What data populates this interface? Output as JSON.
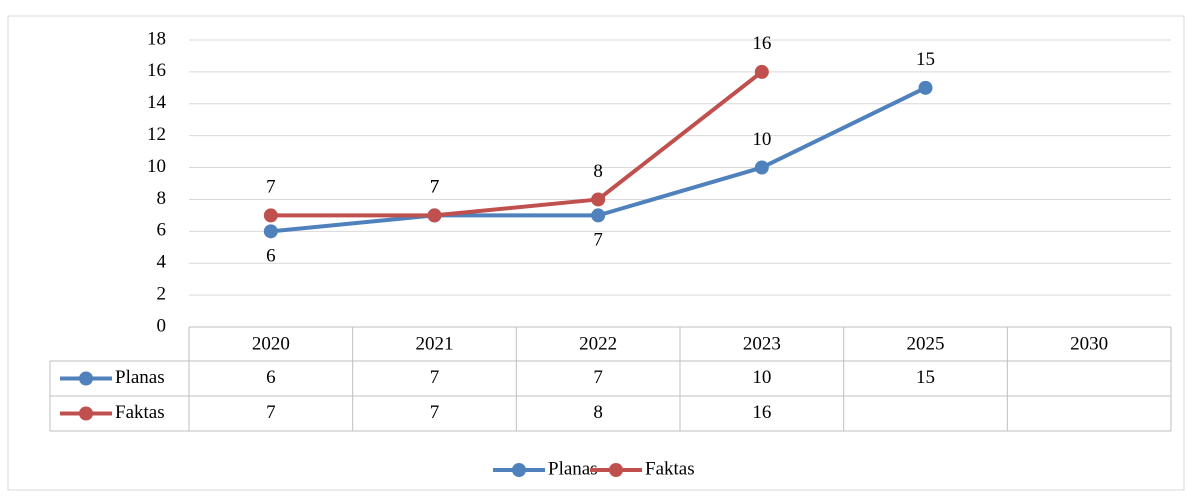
{
  "chart_data": {
    "type": "line",
    "categories": [
      "2020",
      "2021",
      "2022",
      "2023",
      "2025",
      "2030"
    ],
    "series": [
      {
        "name": "Planas",
        "color": "#4f81bd",
        "values": [
          6,
          7,
          7,
          10,
          15,
          null
        ]
      },
      {
        "name": "Faktas",
        "color": "#c0504d",
        "values": [
          7,
          7,
          8,
          16,
          null,
          null
        ]
      }
    ],
    "ylim": [
      0,
      18
    ],
    "yticks": [
      0,
      2,
      4,
      6,
      8,
      10,
      12,
      14,
      16,
      18
    ],
    "grid": true,
    "data_table": true,
    "legend": "bottom"
  }
}
